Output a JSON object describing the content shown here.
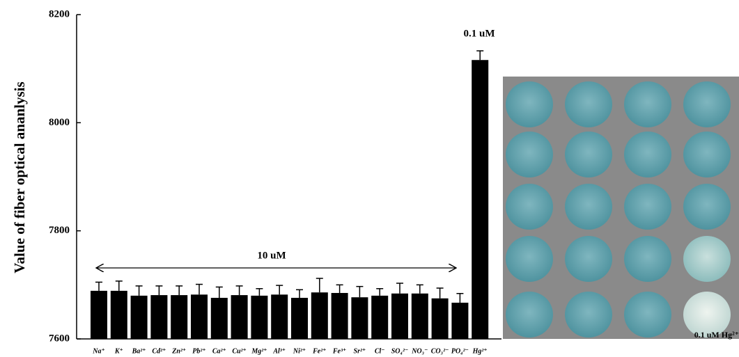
{
  "chart_data": {
    "type": "bar",
    "ylabel": "Value of fiber optical ananlysis",
    "categories": [
      "Na⁺",
      "K⁺",
      "Ba²⁺",
      "Cd²⁺",
      "Zn²⁺",
      "Pb²⁺",
      "Ca²⁺",
      "Cu²⁺",
      "Mg²⁺",
      "Al³⁺",
      "Ni²⁺",
      "Fe²⁺",
      "Fe³⁺",
      "Sr²⁺",
      "Cl⁻",
      "SO₄²⁻",
      "NO₃⁻",
      "CO₃²⁻",
      "PO₄²⁻",
      "Hg²⁺"
    ],
    "values": [
      7689,
      7689,
      7680,
      7681,
      7681,
      7682,
      7676,
      7681,
      7680,
      7682,
      7676,
      7686,
      7685,
      7677,
      7680,
      7684,
      7684,
      7675,
      7667,
      8116
    ],
    "errors": [
      16,
      18,
      18,
      17,
      17,
      19,
      20,
      17,
      13,
      17,
      15,
      26,
      15,
      20,
      13,
      19,
      16,
      19,
      17,
      17
    ],
    "color": "#000000",
    "ylim": [
      7600,
      8200
    ],
    "yticks": [
      7600,
      7800,
      8000,
      8200
    ],
    "annotations": [
      "10 uM",
      "0.1 uM"
    ]
  },
  "photo": {
    "caption": "0.1 uM Hg²⁺"
  }
}
